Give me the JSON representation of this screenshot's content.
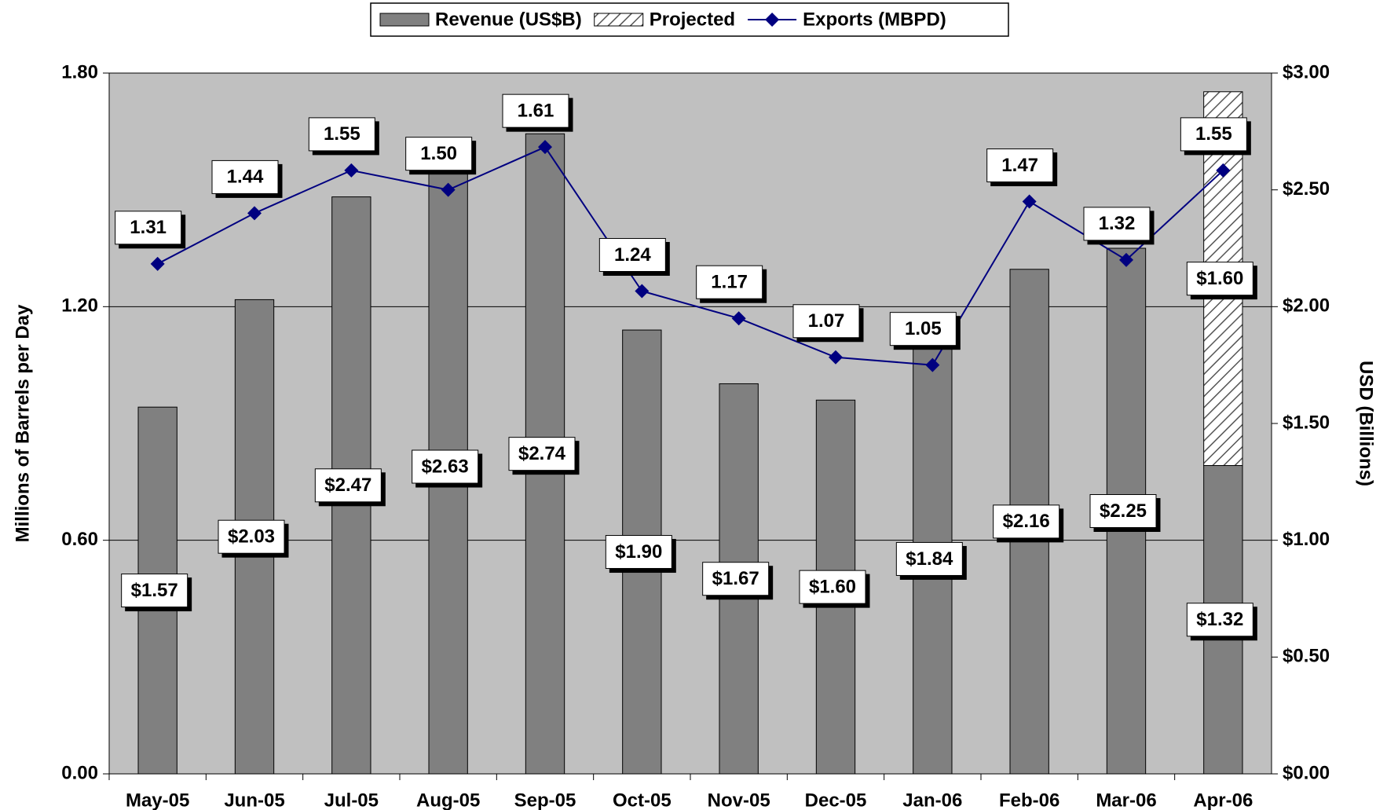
{
  "chart_data": {
    "type": "bar_line",
    "categories": [
      "May-05",
      "Jun-05",
      "Jul-05",
      "Aug-05",
      "Sep-05",
      "Oct-05",
      "Nov-05",
      "Dec-05",
      "Jan-06",
      "Feb-06",
      "Mar-06",
      "Apr-06"
    ],
    "series": [
      {
        "name": "Revenue (US$B)",
        "type": "bar",
        "axis": "y2",
        "color": "#808080",
        "values": [
          1.57,
          2.03,
          2.47,
          2.63,
          2.74,
          1.9,
          1.67,
          1.6,
          1.84,
          2.16,
          2.25,
          1.32
        ],
        "value_labels": [
          "$1.57",
          "$2.03",
          "$2.47",
          "$2.63",
          "$2.74",
          "$1.90",
          "$1.67",
          "$1.60",
          "$1.84",
          "$2.16",
          "$2.25",
          "$1.32"
        ]
      },
      {
        "name": "Projected",
        "type": "bar",
        "axis": "y2",
        "stacked": true,
        "pattern": "hatch",
        "color": "#ffffff",
        "values": [
          null,
          null,
          null,
          null,
          null,
          null,
          null,
          null,
          null,
          null,
          null,
          1.6
        ],
        "value_labels": [
          null,
          null,
          null,
          null,
          null,
          null,
          null,
          null,
          null,
          null,
          null,
          "$1.60"
        ]
      },
      {
        "name": "Exports (MBPD)",
        "type": "line",
        "axis": "y",
        "color": "#000080",
        "values": [
          1.31,
          1.44,
          1.55,
          1.5,
          1.61,
          1.24,
          1.17,
          1.07,
          1.05,
          1.47,
          1.32,
          1.55
        ],
        "value_labels": [
          "1.31",
          "1.44",
          "1.55",
          "1.50",
          "1.61",
          "1.24",
          "1.17",
          "1.07",
          "1.05",
          "1.47",
          "1.32",
          "1.55"
        ]
      }
    ],
    "y_label": "Millions of Barrels per Day",
    "y2_label": "USD (Billions)",
    "ylim": [
      0,
      1.8
    ],
    "yticks": [
      {
        "value": 0,
        "label": "0.00"
      },
      {
        "value": 0.6,
        "label": "0.60"
      },
      {
        "value": 1.2,
        "label": "1.20"
      },
      {
        "value": 1.8,
        "label": "1.80"
      }
    ],
    "y2lim": [
      0,
      3
    ],
    "y2ticks": [
      {
        "value": 0,
        "label": "$0.00"
      },
      {
        "value": 0.5,
        "label": "$0.50"
      },
      {
        "value": 1,
        "label": "$1.00"
      },
      {
        "value": 1.5,
        "label": "$1.50"
      },
      {
        "value": 2,
        "label": "$2.00"
      },
      {
        "value": 2.5,
        "label": "$2.50"
      },
      {
        "value": 3,
        "label": "$3.00"
      }
    ],
    "grid": true,
    "legend": "top"
  }
}
